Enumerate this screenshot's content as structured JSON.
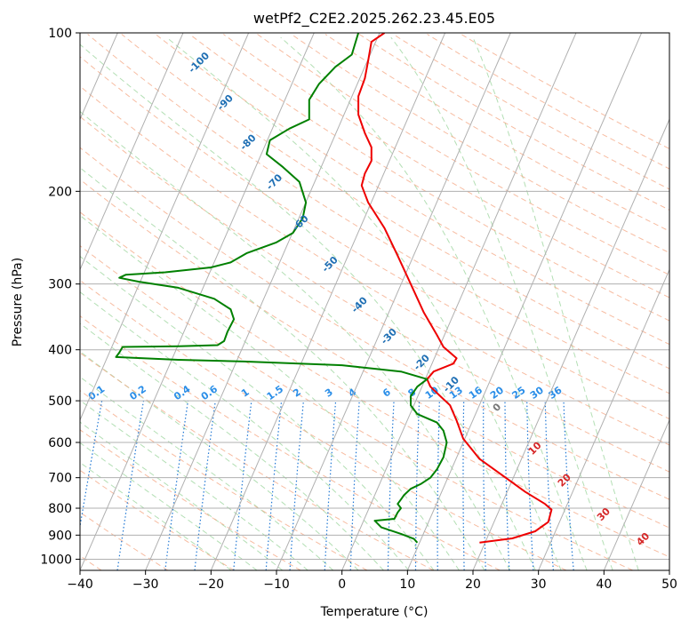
{
  "chart_data": {
    "type": "line",
    "title": "wetPf2_C2E2.2025.262.23.45.E05",
    "xlabel": "Temperature (°C)",
    "ylabel": "Pressure (hPa)",
    "xlim": [
      -40,
      50
    ],
    "ylim": [
      1050,
      100
    ],
    "y_scale": "log",
    "grid": true,
    "x_ticks": [
      -40,
      -30,
      -20,
      -10,
      0,
      10,
      20,
      30,
      40,
      50
    ],
    "y_ticks": [
      1000,
      900,
      800,
      700,
      600,
      500,
      400,
      300,
      200,
      100
    ],
    "skew_labels": [
      {
        "text": "-100",
        "T": -21.5,
        "p": 115
      },
      {
        "text": "-90",
        "T": -17.5,
        "p": 137
      },
      {
        "text": "-80",
        "T": -14.0,
        "p": 163
      },
      {
        "text": "-70",
        "T": -10.0,
        "p": 194
      },
      {
        "text": "-60",
        "T": -6.0,
        "p": 232
      },
      {
        "text": "-50",
        "T": -1.5,
        "p": 278
      },
      {
        "text": "-40",
        "T": 3.0,
        "p": 332
      },
      {
        "text": "-30",
        "T": 7.5,
        "p": 381
      },
      {
        "text": "-20",
        "T": 12.5,
        "p": 427
      },
      {
        "text": "-10",
        "T": 17.0,
        "p": 470
      },
      {
        "text": "0",
        "T": 24.0,
        "p": 520
      },
      {
        "text": "10",
        "T": 29.8,
        "p": 622
      },
      {
        "text": "20",
        "T": 34.3,
        "p": 715
      },
      {
        "text": "30",
        "T": 40.3,
        "p": 830
      },
      {
        "text": "40",
        "T": 46.3,
        "p": 925
      }
    ],
    "mixing_ratio_labels": [
      "0.1",
      "0.2",
      "0.4",
      "0.6",
      "1",
      "1.5",
      "2",
      "3",
      "4",
      "6",
      "8",
      "10",
      "13",
      "16",
      "20",
      "25",
      "30",
      "36"
    ],
    "series": [
      {
        "color": "#ee0000",
        "points": [
          [
            21,
            930
          ],
          [
            26,
            913
          ],
          [
            29.5,
            885
          ],
          [
            31.5,
            850
          ],
          [
            32,
            805
          ],
          [
            31,
            785
          ],
          [
            28,
            745
          ],
          [
            25,
            700
          ],
          [
            21,
            645
          ],
          [
            18.5,
            590
          ],
          [
            17.5,
            545
          ],
          [
            16.5,
            510
          ],
          [
            15,
            490
          ],
          [
            13.5,
            470
          ],
          [
            13,
            455
          ],
          [
            14,
            440
          ],
          [
            17,
            425
          ],
          [
            17.5,
            415
          ],
          [
            15.5,
            395
          ],
          [
            14.5,
            375
          ],
          [
            12.5,
            340
          ],
          [
            10.5,
            300
          ],
          [
            8.5,
            265
          ],
          [
            6.5,
            235
          ],
          [
            4,
            210
          ],
          [
            3,
            195
          ],
          [
            3.5,
            185
          ],
          [
            4.5,
            175
          ],
          [
            4.5,
            165
          ],
          [
            3.5,
            155
          ],
          [
            2.5,
            143
          ],
          [
            2.5,
            132
          ],
          [
            3.5,
            122
          ],
          [
            4,
            113
          ],
          [
            4.5,
            104
          ],
          [
            6.5,
            100
          ]
        ]
      },
      {
        "color": "#008000",
        "points": [
          [
            11.5,
            930
          ],
          [
            11,
            915
          ],
          [
            9,
            895
          ],
          [
            6,
            870
          ],
          [
            5,
            845
          ],
          [
            8,
            838
          ],
          [
            8.5,
            815
          ],
          [
            9,
            800
          ],
          [
            8.5,
            785
          ],
          [
            9,
            770
          ],
          [
            9.5,
            755
          ],
          [
            10.5,
            735
          ],
          [
            12,
            720
          ],
          [
            13.5,
            700
          ],
          [
            14.5,
            675
          ],
          [
            15.5,
            640
          ],
          [
            16,
            600
          ],
          [
            15.5,
            570
          ],
          [
            14.5,
            550
          ],
          [
            11.5,
            530
          ],
          [
            10.5,
            510
          ],
          [
            10.5,
            490
          ],
          [
            11.5,
            470
          ],
          [
            13,
            455
          ],
          [
            9,
            440
          ],
          [
            0,
            428
          ],
          [
            -15,
            421
          ],
          [
            -25,
            418
          ],
          [
            -34.5,
            413
          ],
          [
            -34,
            405
          ],
          [
            -33.5,
            395
          ],
          [
            -25,
            394
          ],
          [
            -19,
            392
          ],
          [
            -18,
            385
          ],
          [
            -17.5,
            370
          ],
          [
            -16.5,
            350
          ],
          [
            -17,
            335
          ],
          [
            -19.5,
            320
          ],
          [
            -25,
            305
          ],
          [
            -31,
            297
          ],
          [
            -34,
            292
          ],
          [
            -33,
            288
          ],
          [
            -27,
            285
          ],
          [
            -20,
            279
          ],
          [
            -17,
            273
          ],
          [
            -14.5,
            262
          ],
          [
            -10,
            250
          ],
          [
            -7.5,
            240
          ],
          [
            -6,
            225
          ],
          [
            -5.5,
            210
          ],
          [
            -6.5,
            192
          ],
          [
            -9,
            180
          ],
          [
            -11.5,
            170
          ],
          [
            -11,
            160
          ],
          [
            -8,
            152
          ],
          [
            -5,
            146
          ],
          [
            -5,
            134
          ],
          [
            -3.5,
            125
          ],
          [
            -1,
            116
          ],
          [
            1.5,
            110
          ],
          [
            2.5,
            100
          ]
        ]
      }
    ]
  }
}
